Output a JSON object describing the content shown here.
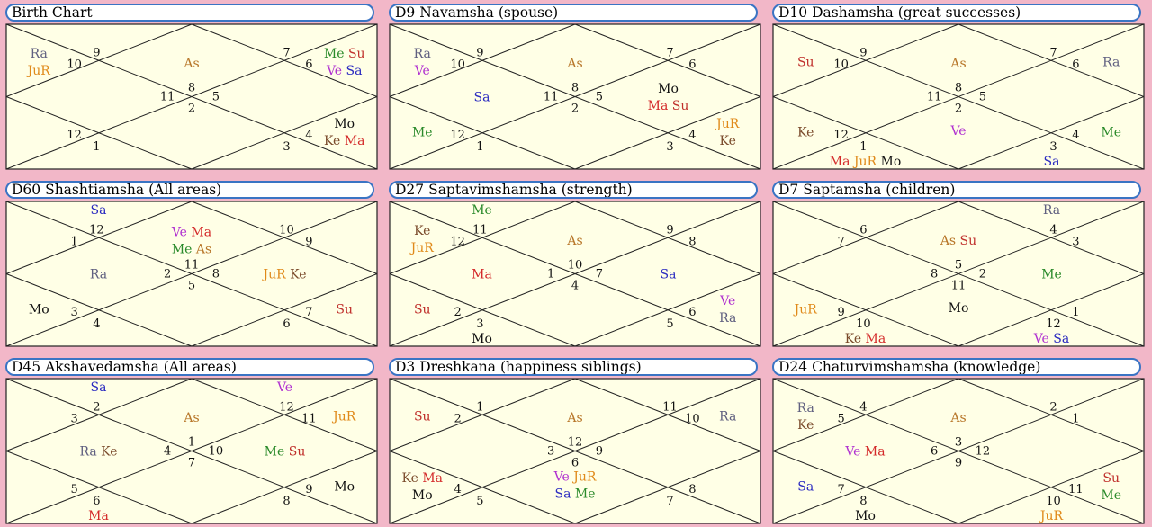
{
  "colors": {
    "background": "#f2b7c8",
    "chart_fill": "#ffffe6",
    "title_border": "#3a74c4",
    "As": "#b8772a",
    "Su": "#c0302c",
    "Mo": "#111111",
    "Ma": "#d42a2a",
    "Me": "#2a8a2a",
    "Ju": "#e08a1a",
    "Ve": "#b030d0",
    "Sa": "#2a2ac0",
    "Ra": "#606080",
    "Ke": "#7a4a2a"
  },
  "charts": [
    {
      "title": "Birth Chart",
      "signs": [
        "8",
        "9",
        "10",
        "11",
        "12",
        "1",
        "2",
        "3",
        "4",
        "5",
        "6",
        "7"
      ],
      "houses": [
        [
          "As"
        ],
        [],
        [
          "Ra",
          "JuR"
        ],
        [],
        [],
        [],
        [],
        [],
        [
          "Mo",
          "Ke Ma"
        ],
        [],
        [
          "Me Su",
          "Ve Sa"
        ],
        []
      ]
    },
    {
      "title": "D9 Navamsha  (spouse)",
      "signs": [
        "8",
        "9",
        "10",
        "11",
        "12",
        "1",
        "2",
        "3",
        "4",
        "5",
        "6",
        "7"
      ],
      "houses": [
        [
          "As"
        ],
        [],
        [
          "Ra",
          "Ve"
        ],
        [
          "Sa"
        ],
        [
          "Me"
        ],
        [],
        [],
        [],
        [
          "JuR",
          "Ke"
        ],
        [
          "Mo",
          "Ma Su"
        ],
        [],
        []
      ]
    },
    {
      "title": "D10 Dashamsha  (great successes)",
      "signs": [
        "8",
        "9",
        "10",
        "11",
        "12",
        "1",
        "2",
        "3",
        "4",
        "5",
        "6",
        "7"
      ],
      "houses": [
        [
          "As"
        ],
        [],
        [
          "Su"
        ],
        [],
        [
          "Ke"
        ],
        [
          "Ma JuR Mo"
        ],
        [
          "Ve"
        ],
        [
          "Sa"
        ],
        [
          "Me"
        ],
        [],
        [
          "Ra"
        ],
        []
      ]
    },
    {
      "title": "D60 Shashtiamsha  (All areas)",
      "signs": [
        "11",
        "12",
        "1",
        "2",
        "3",
        "4",
        "5",
        "6",
        "7",
        "8",
        "9",
        "10"
      ],
      "houses": [
        [
          "Ve Ma",
          "Me As"
        ],
        [
          "Sa"
        ],
        [],
        [
          "Ra"
        ],
        [
          "Mo"
        ],
        [],
        [],
        [],
        [
          "Su"
        ],
        [
          "JuR Ke"
        ],
        [],
        []
      ]
    },
    {
      "title": "D27 Saptavimshamsha  (strength)",
      "signs": [
        "10",
        "11",
        "12",
        "1",
        "2",
        "3",
        "4",
        "5",
        "6",
        "7",
        "8",
        "9"
      ],
      "houses": [
        [
          "As"
        ],
        [
          "Me"
        ],
        [
          "Ke",
          "JuR"
        ],
        [
          "Ma"
        ],
        [
          "Su"
        ],
        [
          "Mo"
        ],
        [],
        [],
        [
          "Ve",
          "Ra"
        ],
        [
          "Sa"
        ],
        [],
        []
      ]
    },
    {
      "title": "D7 Saptamsha  (children)",
      "signs": [
        "5",
        "6",
        "7",
        "8",
        "9",
        "10",
        "11",
        "12",
        "1",
        "2",
        "3",
        "4"
      ],
      "houses": [
        [
          "As Su"
        ],
        [],
        [],
        [],
        [
          "JuR"
        ],
        [
          "Ke Ma"
        ],
        [
          "Mo"
        ],
        [
          "Ve Sa"
        ],
        [],
        [
          "Me"
        ],
        [],
        [
          "Ra"
        ]
      ]
    },
    {
      "title": "D45 Akshavedamsha  (All areas)",
      "signs": [
        "1",
        "2",
        "3",
        "4",
        "5",
        "6",
        "7",
        "8",
        "9",
        "10",
        "11",
        "12"
      ],
      "houses": [
        [
          "As"
        ],
        [
          "Sa"
        ],
        [],
        [
          "Ra Ke"
        ],
        [],
        [
          "Ma"
        ],
        [],
        [],
        [
          "Mo"
        ],
        [
          "Me Su"
        ],
        [
          "JuR"
        ],
        [
          "Ve"
        ]
      ]
    },
    {
      "title": "D3 Dreshkana  (happiness siblings)",
      "signs": [
        "12",
        "1",
        "2",
        "3",
        "4",
        "5",
        "6",
        "7",
        "8",
        "9",
        "10",
        "11"
      ],
      "houses": [
        [
          "As"
        ],
        [],
        [
          "Su"
        ],
        [],
        [
          "Ke Ma",
          "Mo"
        ],
        [],
        [
          "Ve JuR",
          "Sa Me"
        ],
        [],
        [],
        [],
        [
          "Ra"
        ],
        []
      ]
    },
    {
      "title": "D24 Chaturvimshamsha  (knowledge)",
      "signs": [
        "3",
        "4",
        "5",
        "6",
        "7",
        "8",
        "9",
        "10",
        "11",
        "12",
        "1",
        "2"
      ],
      "houses": [
        [
          "As"
        ],
        [],
        [
          "Ra",
          "Ke"
        ],
        [
          "Ve Ma"
        ],
        [
          "Sa"
        ],
        [
          "Mo"
        ],
        [],
        [
          "JuR"
        ],
        [
          "Su",
          "Me"
        ],
        [],
        [],
        []
      ]
    }
  ]
}
